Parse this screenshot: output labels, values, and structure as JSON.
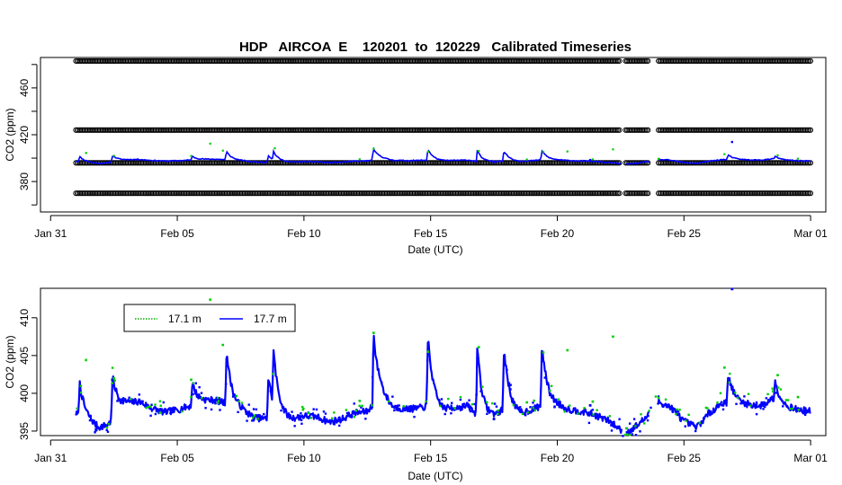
{
  "chart_data": [
    {
      "type": "scatter",
      "title": "HDP   AIRCOA  E    120201  to  120229   Calibrated Timeseries",
      "xlabel": "Date (UTC)",
      "ylabel": "CO2 (ppm)",
      "x_ticks": [
        "Jan 31",
        "Feb 05",
        "Feb 10",
        "Feb 15",
        "Feb 20",
        "Feb 25",
        "Mar 01"
      ],
      "x_tick_days": [
        0,
        5,
        10,
        15,
        20,
        25,
        30
      ],
      "xlim_days": [
        -0.4,
        30.6
      ],
      "ylim": [
        354,
        486
      ],
      "y_ticks": [
        380,
        420,
        460
      ],
      "y_ticks_all": [
        360,
        380,
        400,
        420,
        440,
        460,
        480
      ],
      "grid": false,
      "series": [
        {
          "kind": "reference-circles",
          "color": "#000000",
          "levels": [
            483,
            424,
            396,
            370
          ],
          "segments": [
            [
              1.0,
              22.5
            ],
            [
              22.7,
              23.6
            ],
            [
              24.0,
              30.0
            ]
          ]
        },
        {
          "name": "17.1 m",
          "color": "#00cc00"
        },
        {
          "name": "17.7 m",
          "color": "#0000ff"
        }
      ]
    },
    {
      "type": "line",
      "xlabel": "Date (UTC)",
      "ylabel": "CO2 (ppm)",
      "x_ticks": [
        "Jan 31",
        "Feb 05",
        "Feb 10",
        "Feb 15",
        "Feb 20",
        "Feb 25",
        "Mar 01"
      ],
      "x_tick_days": [
        0,
        5,
        10,
        15,
        20,
        25,
        30
      ],
      "xlim_days": [
        -0.4,
        30.6
      ],
      "ylim": [
        394.4,
        413.9
      ],
      "y_ticks": [
        395,
        400,
        405,
        410
      ],
      "grid": false,
      "legend": {
        "position": "top-left"
      },
      "series": [
        {
          "name": "17.1 m",
          "color": "#00aa00",
          "style": "dotted"
        },
        {
          "name": "17.7 m",
          "color": "#0000ff",
          "style": "solid"
        }
      ],
      "baseline": [
        [
          1.0,
          397.3
        ],
        [
          1.5,
          396.4
        ],
        [
          1.9,
          395.4
        ],
        [
          2.3,
          395.9
        ],
        [
          2.6,
          397.6
        ],
        [
          3.0,
          398.6
        ],
        [
          3.5,
          398.9
        ],
        [
          4.0,
          398.0
        ],
        [
          4.5,
          397.5
        ],
        [
          5.0,
          397.8
        ],
        [
          5.5,
          398.3
        ],
        [
          6.0,
          398.9
        ],
        [
          6.5,
          399.1
        ],
        [
          7.0,
          398.6
        ],
        [
          7.5,
          397.9
        ],
        [
          8.0,
          396.8
        ],
        [
          8.5,
          396.6
        ],
        [
          9.0,
          396.9
        ],
        [
          9.5,
          396.5
        ],
        [
          10.0,
          397.0
        ],
        [
          10.5,
          396.9
        ],
        [
          11.0,
          396.2
        ],
        [
          11.5,
          396.6
        ],
        [
          12.0,
          397.4
        ],
        [
          12.5,
          397.6
        ],
        [
          13.0,
          399.6
        ],
        [
          13.5,
          398.1
        ],
        [
          14.0,
          397.9
        ],
        [
          14.5,
          398.0
        ],
        [
          15.0,
          398.4
        ],
        [
          15.5,
          397.7
        ],
        [
          16.0,
          398.1
        ],
        [
          16.5,
          398.3
        ],
        [
          17.0,
          396.5
        ],
        [
          17.5,
          397.0
        ],
        [
          18.0,
          398.0
        ],
        [
          18.5,
          397.2
        ],
        [
          19.0,
          397.8
        ],
        [
          19.5,
          398.6
        ],
        [
          20.0,
          398.4
        ],
        [
          20.5,
          397.8
        ],
        [
          21.0,
          397.6
        ],
        [
          21.5,
          397.1
        ],
        [
          22.0,
          396.4
        ],
        [
          22.5,
          395.2
        ],
        [
          22.8,
          394.9
        ],
        [
          23.2,
          395.9
        ],
        [
          23.6,
          397.1
        ],
        [
          24.0,
          398.9
        ],
        [
          24.5,
          398.1
        ],
        [
          25.0,
          396.3
        ],
        [
          25.5,
          395.5
        ],
        [
          26.0,
          397.4
        ],
        [
          26.5,
          398.7
        ],
        [
          27.0,
          398.9
        ],
        [
          27.5,
          398.5
        ],
        [
          28.0,
          398.3
        ],
        [
          28.5,
          399.3
        ],
        [
          29.0,
          398.2
        ],
        [
          29.5,
          397.8
        ],
        [
          30.0,
          397.6
        ]
      ],
      "spikes": [
        [
          1.15,
          401.3
        ],
        [
          2.45,
          402.2
        ],
        [
          5.6,
          401.4
        ],
        [
          6.95,
          405.5
        ],
        [
          8.6,
          402.2
        ],
        [
          8.8,
          405.8
        ],
        [
          12.75,
          407.8
        ],
        [
          14.9,
          407.3
        ],
        [
          16.85,
          406.4
        ],
        [
          17.9,
          405.8
        ],
        [
          19.4,
          406.3
        ],
        [
          26.75,
          402.6
        ],
        [
          28.6,
          401.6
        ]
      ],
      "green_points": [
        [
          1.4,
          404.4
        ],
        [
          2.5,
          402.0
        ],
        [
          5.55,
          401.8
        ],
        [
          6.3,
          412.4
        ],
        [
          6.8,
          406.4
        ],
        [
          8.85,
          408.4
        ],
        [
          12.2,
          399.0
        ],
        [
          12.75,
          408.0
        ],
        [
          14.9,
          405.5
        ],
        [
          16.9,
          406.1
        ],
        [
          18.8,
          398.8
        ],
        [
          19.45,
          405.4
        ],
        [
          20.4,
          405.7
        ],
        [
          21.4,
          398.9
        ],
        [
          22.2,
          407.5
        ],
        [
          24.0,
          399.4
        ],
        [
          26.6,
          403.4
        ],
        [
          28.7,
          402.4
        ],
        [
          29.5,
          399.5
        ]
      ],
      "blue_outliers": [
        [
          26.9,
          413.8
        ],
        [
          21.3,
          398.4
        ],
        [
          17.5,
          396.6
        ]
      ]
    }
  ]
}
